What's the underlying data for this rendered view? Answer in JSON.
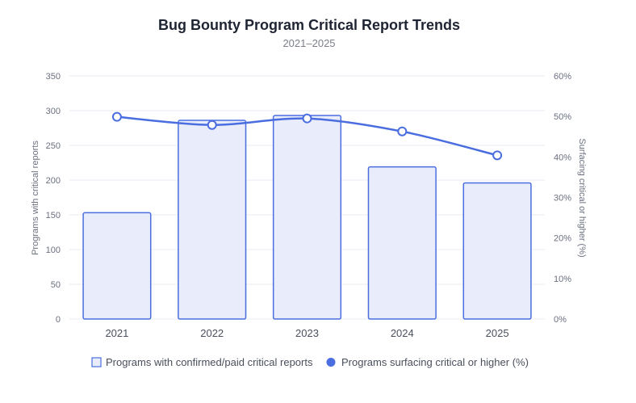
{
  "chart_data": {
    "type": "bar+line",
    "title": "Bug Bounty Program Critical Report Trends",
    "subtitle": "2021–2025",
    "categories": [
      "2021",
      "2022",
      "2023",
      "2024",
      "2025"
    ],
    "series": [
      {
        "name": "Programs with confirmed/paid critical reports",
        "type": "bar",
        "axis": "left",
        "values": [
          153,
          286,
          293,
          219,
          196
        ]
      },
      {
        "name": "Programs surfacing critical or higher (%)",
        "type": "line",
        "axis": "right",
        "values": [
          49.9,
          47.9,
          49.5,
          46.3,
          40.4
        ]
      }
    ],
    "y_left": {
      "label": "Programs with critical reports",
      "min": 0,
      "max": 350,
      "ticks": [
        "0",
        "50",
        "100",
        "150",
        "200",
        "250",
        "300",
        "350"
      ]
    },
    "y_right": {
      "label": "Surfacing critical or higher (%)",
      "min": 0,
      "max": 60,
      "ticks": [
        "0%",
        "10%",
        "20%",
        "30%",
        "40%",
        "50%",
        "60%"
      ]
    },
    "grid": true,
    "legend_position": "bottom",
    "colors": {
      "accent": "#4a6ee0",
      "bar_fill": "#e8ecfb",
      "grid": "#e9ebf0"
    }
  }
}
